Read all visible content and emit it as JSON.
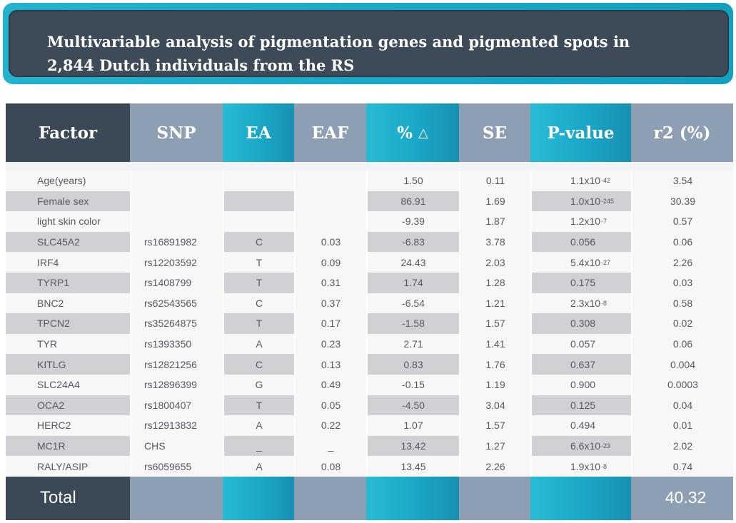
{
  "title": {
    "line1": "Multivariable analysis of pigmentation genes and pigmented spots in",
    "line2": "2,844 Dutch individuals from the RS"
  },
  "headers": [
    "Factor",
    "SNP",
    "EA",
    "EAF",
    "%",
    "SE",
    "P-value",
    "r2 (%)"
  ],
  "delta_symbol": "△",
  "rows": [
    {
      "factor": "Age(years)",
      "snp": "",
      "ea": "",
      "eaf": "",
      "pct": "1.50",
      "se": "0.11",
      "p_base": "1.1x10",
      "p_exp": "-42",
      "r2": "3.54"
    },
    {
      "factor": "Female sex",
      "snp": "",
      "ea": "",
      "eaf": "",
      "pct": "86.91",
      "se": "1.69",
      "p_base": "1.0x10",
      "p_exp": "-245",
      "r2": "30.39"
    },
    {
      "factor": "light skin color",
      "snp": "",
      "ea": "",
      "eaf": "",
      "pct": "-9.39",
      "se": "1.87",
      "p_base": "1.2x10",
      "p_exp": "-7",
      "r2": "0.57"
    },
    {
      "factor": "SLC45A2",
      "snp": "rs16891982",
      "ea": "C",
      "eaf": "0.03",
      "pct": "-6.83",
      "se": "3.78",
      "p_base": "0.056",
      "p_exp": "",
      "r2": "0.06"
    },
    {
      "factor": "IRF4",
      "snp": "rs12203592",
      "ea": "T",
      "eaf": "0.09",
      "pct": "24.43",
      "se": "2.03",
      "p_base": "5.4x10",
      "p_exp": "-27",
      "r2": "2.26"
    },
    {
      "factor": "TYRP1",
      "snp": "rs1408799",
      "ea": "T",
      "eaf": "0.31",
      "pct": "1.74",
      "se": "1.28",
      "p_base": "0.175",
      "p_exp": "",
      "r2": "0.03"
    },
    {
      "factor": "BNC2",
      "snp": "rs62543565",
      "ea": "C",
      "eaf": "0.37",
      "pct": "-6.54",
      "se": "1.21",
      "p_base": "2.3x10",
      "p_exp": "-8",
      "r2": "0.58"
    },
    {
      "factor": "TPCN2",
      "snp": "rs35264875",
      "ea": "T",
      "eaf": "0.17",
      "pct": "-1.58",
      "se": "1.57",
      "p_base": "0.308",
      "p_exp": "",
      "r2": "0.02"
    },
    {
      "factor": "TYR",
      "snp": "rs1393350",
      "ea": "A",
      "eaf": "0.23",
      "pct": "2.71",
      "se": "1.41",
      "p_base": "0.057",
      "p_exp": "",
      "r2": "0.06"
    },
    {
      "factor": "KITLG",
      "snp": "rs12821256",
      "ea": "C",
      "eaf": "0.13",
      "pct": "0.83",
      "se": "1.76",
      "p_base": "0.637",
      "p_exp": "",
      "r2": "0.004"
    },
    {
      "factor": "SLC24A4",
      "snp": "rs12896399",
      "ea": "G",
      "eaf": "0.49",
      "pct": "-0.15",
      "se": "1.19",
      "p_base": "0.900",
      "p_exp": "",
      "r2": "0.0003"
    },
    {
      "factor": "OCA2",
      "snp": "rs1800407",
      "ea": "T",
      "eaf": "0.05",
      "pct": "-4.50",
      "se": "3.04",
      "p_base": "0.125",
      "p_exp": "",
      "r2": "0.04"
    },
    {
      "factor": "HERC2",
      "snp": "rs12913832",
      "ea": "A",
      "eaf": "0.22",
      "pct": "1.07",
      "se": "1.57",
      "p_base": "0.494",
      "p_exp": "",
      "r2": "0.01"
    },
    {
      "factor": "MC1R",
      "snp": "CHS",
      "ea": "_",
      "eaf": "_",
      "pct": "13.42",
      "se": "1.27",
      "p_base": "6.6x10",
      "p_exp": "-23",
      "r2": "2.02"
    },
    {
      "factor": "RALY/ASIP",
      "snp": "rs6059655",
      "ea": "A",
      "eaf": "0.08",
      "pct": "13.45",
      "se": "2.26",
      "p_base": "1.9x10",
      "p_exp": "-8",
      "r2": "0.74"
    }
  ],
  "total": {
    "label": "Total",
    "r2": "40.32"
  }
}
